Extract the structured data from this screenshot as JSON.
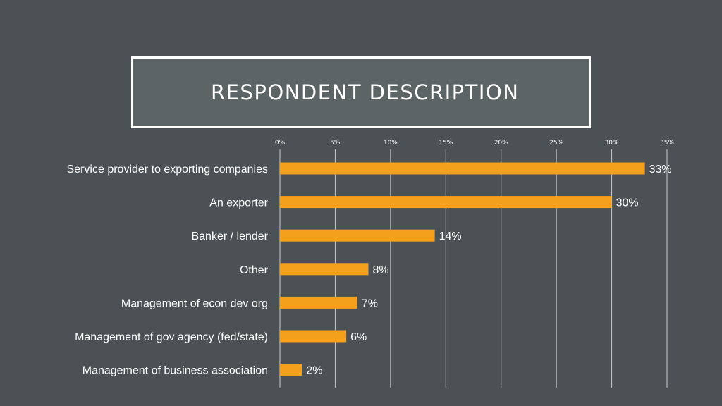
{
  "slide": {
    "title": "RESPONDENT DESCRIPTION"
  },
  "colors": {
    "background": "#4b5154",
    "title_box": "#5d6466",
    "bar": "#f5a01d",
    "gridline": "#c8cbcc",
    "text": "#ffffff"
  },
  "chart_data": {
    "type": "bar",
    "orientation": "horizontal",
    "categories": [
      "Service provider to exporting companies",
      "An exporter",
      "Banker / lender",
      "Other",
      "Management of econ dev org",
      "Management of gov agency (fed/state)",
      "Management of business association"
    ],
    "values": [
      33,
      30,
      14,
      8,
      7,
      6,
      2
    ],
    "data_labels": [
      "33%",
      "30%",
      "14%",
      "8%",
      "7%",
      "6%",
      "2%"
    ],
    "x_ticks": [
      "0%",
      "5%",
      "10%",
      "15%",
      "20%",
      "25%",
      "30%",
      "35%"
    ],
    "xlim": [
      0,
      35
    ],
    "x_axis_position": "top",
    "grid": true,
    "legend": "none"
  }
}
